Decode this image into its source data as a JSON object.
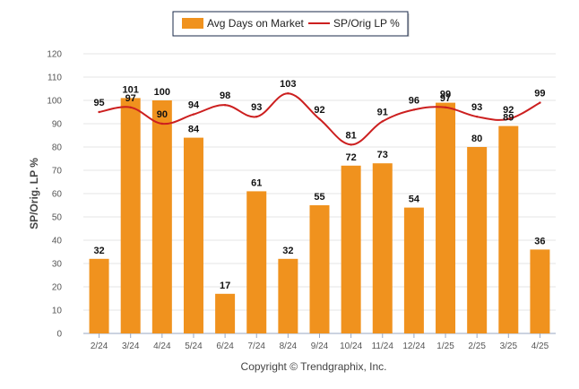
{
  "chart_data": {
    "type": "bar",
    "categories": [
      "2/24",
      "3/24",
      "4/24",
      "5/24",
      "6/24",
      "7/24",
      "8/24",
      "9/24",
      "10/24",
      "11/24",
      "12/24",
      "1/25",
      "2/25",
      "3/25",
      "4/25"
    ],
    "series": [
      {
        "name": "Avg Days on Market",
        "type": "bar",
        "color": "#f0921e",
        "values": [
          32,
          101,
          100,
          84,
          17,
          61,
          32,
          55,
          72,
          73,
          54,
          99,
          80,
          89,
          36
        ]
      },
      {
        "name": "SP/Orig LP %",
        "type": "line",
        "color": "#cc1f1f",
        "values": [
          95,
          97,
          90,
          94,
          98,
          93,
          103,
          92,
          81,
          91,
          96,
          97,
          93,
          92,
          99
        ]
      }
    ],
    "y_ticks": [
      "0",
      "10",
      "20",
      "30",
      "40",
      "50",
      "60",
      "70",
      "80",
      "90",
      "100",
      "110",
      "120"
    ],
    "ylim": [
      0,
      120
    ],
    "ylabel": "SP/Orig. LP %",
    "xlabel": "",
    "grid": true,
    "legend_position": "top-center",
    "copyright": "Copyright © Trendgraphix, Inc."
  }
}
